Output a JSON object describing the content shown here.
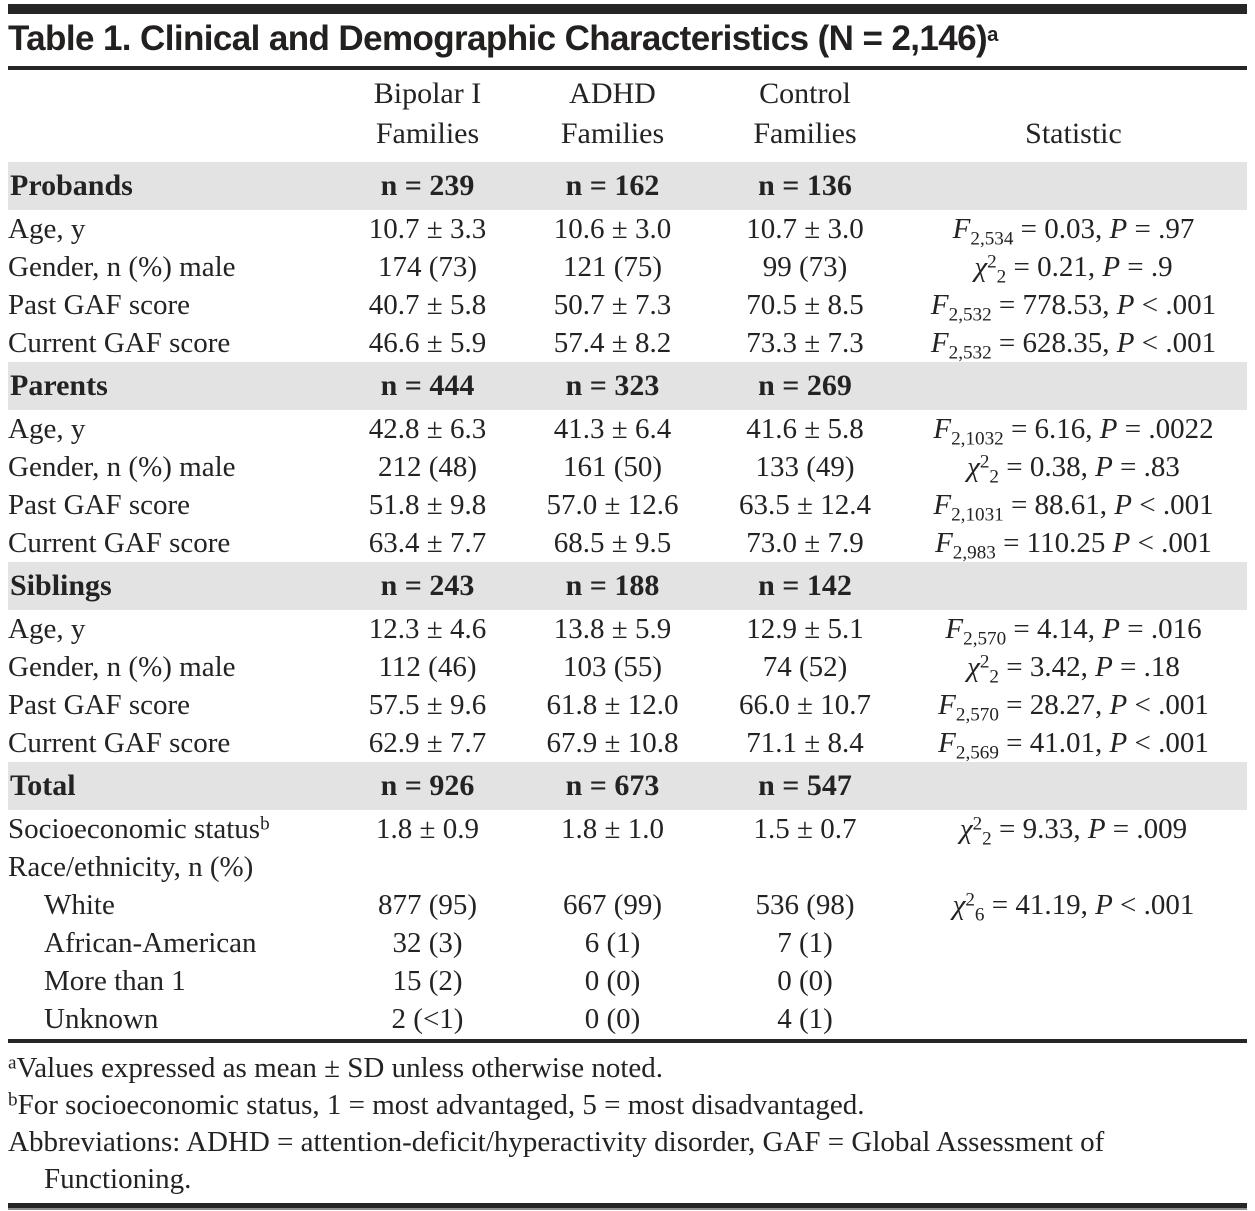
{
  "title": {
    "text": "Table 1. Clinical and Demographic Characteristics (N = 2,146)",
    "sup": "a"
  },
  "colors": {
    "ink": "#232323",
    "band_gray": "#e3e3e3",
    "rule_black": "#262626"
  },
  "table": {
    "columns": [
      {
        "line1": "",
        "line2": ""
      },
      {
        "line1": "Bipolar I",
        "line2": "Families"
      },
      {
        "line1": "ADHD",
        "line2": "Families"
      },
      {
        "line1": "Control",
        "line2": "Families"
      },
      {
        "line1": "",
        "line2": "Statistic"
      }
    ],
    "sections": [
      {
        "name": "Probands",
        "counts": [
          "n = 239",
          "n = 162",
          "n = 136"
        ],
        "rows": [
          {
            "label": "Age, y",
            "cells": [
              "10.7 ± 3.3",
              "10.6 ± 3.0",
              "10.7 ± 3.0"
            ],
            "stat": [
              [
                "i",
                "F"
              ],
              [
                "sub",
                "2,534"
              ],
              [
                "p",
                " = 0.03, "
              ],
              [
                "i",
                "P"
              ],
              [
                "p",
                " = .97"
              ]
            ]
          },
          {
            "label": "Gender, n (%) male",
            "cells": [
              "174 (73)",
              "121 (75)",
              "99 (73)"
            ],
            "stat": [
              [
                "i",
                "χ"
              ],
              [
                "sup",
                "2"
              ],
              [
                "sub",
                "2"
              ],
              [
                "p",
                " = 0.21, "
              ],
              [
                "i",
                "P"
              ],
              [
                "p",
                " = .9"
              ]
            ]
          },
          {
            "label": "Past GAF score",
            "cells": [
              "40.7 ± 5.8",
              "50.7 ± 7.3",
              "70.5 ± 8.5"
            ],
            "stat": [
              [
                "i",
                "F"
              ],
              [
                "sub",
                "2,532"
              ],
              [
                "p",
                " = 778.53, "
              ],
              [
                "i",
                "P"
              ],
              [
                "p",
                " < .001"
              ]
            ]
          },
          {
            "label": "Current GAF score",
            "cells": [
              "46.6 ± 5.9",
              "57.4 ± 8.2",
              "73.3 ± 7.3"
            ],
            "stat": [
              [
                "i",
                "F"
              ],
              [
                "sub",
                "2,532"
              ],
              [
                "p",
                " = 628.35, "
              ],
              [
                "i",
                "P"
              ],
              [
                "p",
                " < .001"
              ]
            ]
          }
        ]
      },
      {
        "name": "Parents",
        "counts": [
          "n = 444",
          "n = 323",
          "n = 269"
        ],
        "rows": [
          {
            "label": "Age, y",
            "cells": [
              "42.8 ± 6.3",
              "41.3 ± 6.4",
              "41.6 ± 5.8"
            ],
            "stat": [
              [
                "i",
                "F"
              ],
              [
                "sub",
                "2,1032"
              ],
              [
                "p",
                " = 6.16, "
              ],
              [
                "i",
                "P"
              ],
              [
                "p",
                " = .0022"
              ]
            ]
          },
          {
            "label": "Gender, n (%) male",
            "cells": [
              "212 (48)",
              "161 (50)",
              "133 (49)"
            ],
            "stat": [
              [
                "i",
                "χ"
              ],
              [
                "sup",
                "2"
              ],
              [
                "sub",
                "2"
              ],
              [
                "p",
                " = 0.38, "
              ],
              [
                "i",
                "P"
              ],
              [
                "p",
                " = .83"
              ]
            ]
          },
          {
            "label": "Past GAF score",
            "cells": [
              "51.8 ± 9.8",
              "57.0 ± 12.6",
              "63.5 ± 12.4"
            ],
            "stat": [
              [
                "i",
                "F"
              ],
              [
                "sub",
                "2,1031"
              ],
              [
                "p",
                " = 88.61, "
              ],
              [
                "i",
                "P"
              ],
              [
                "p",
                " < .001"
              ]
            ]
          },
          {
            "label": "Current GAF score",
            "cells": [
              "63.4 ± 7.7",
              "68.5 ± 9.5",
              "73.0 ± 7.9"
            ],
            "stat": [
              [
                "i",
                "F"
              ],
              [
                "sub",
                "2,983"
              ],
              [
                "p",
                " = 110.25 "
              ],
              [
                "i",
                "P"
              ],
              [
                "p",
                " < .001"
              ]
            ]
          }
        ]
      },
      {
        "name": "Siblings",
        "counts": [
          "n = 243",
          "n = 188",
          "n = 142"
        ],
        "rows": [
          {
            "label": "Age, y",
            "cells": [
              "12.3 ± 4.6",
              "13.8 ± 5.9",
              "12.9 ± 5.1"
            ],
            "stat": [
              [
                "i",
                "F"
              ],
              [
                "sub",
                "2,570"
              ],
              [
                "p",
                " = 4.14, "
              ],
              [
                "i",
                "P"
              ],
              [
                "p",
                " = .016"
              ]
            ]
          },
          {
            "label": "Gender, n (%) male",
            "cells": [
              "112 (46)",
              "103 (55)",
              "74 (52)"
            ],
            "stat": [
              [
                "i",
                "χ"
              ],
              [
                "sup",
                "2"
              ],
              [
                "sub",
                "2"
              ],
              [
                "p",
                " = 3.42, "
              ],
              [
                "i",
                "P"
              ],
              [
                "p",
                " = .18"
              ]
            ]
          },
          {
            "label": "Past GAF score",
            "cells": [
              "57.5 ± 9.6",
              "61.8 ± 12.0",
              "66.0 ± 10.7"
            ],
            "stat": [
              [
                "i",
                "F"
              ],
              [
                "sub",
                "2,570"
              ],
              [
                "p",
                " = 28.27, "
              ],
              [
                "i",
                "P"
              ],
              [
                "p",
                " < .001"
              ]
            ]
          },
          {
            "label": "Current GAF score",
            "cells": [
              "62.9 ± 7.7",
              "67.9 ± 10.8",
              "71.1 ± 8.4"
            ],
            "stat": [
              [
                "i",
                "F"
              ],
              [
                "sub",
                "2,569"
              ],
              [
                "p",
                " = 41.01, "
              ],
              [
                "i",
                "P"
              ],
              [
                "p",
                " < .001"
              ]
            ]
          }
        ]
      },
      {
        "name": "Total",
        "counts": [
          "n = 926",
          "n = 673",
          "n = 547"
        ],
        "rows": [
          {
            "label": "Socioeconomic status",
            "label_sup": "b",
            "cells": [
              "1.8 ± 0.9",
              "1.8 ± 1.0",
              "1.5 ± 0.7"
            ],
            "stat": [
              [
                "i",
                "χ"
              ],
              [
                "sup",
                "2"
              ],
              [
                "sub",
                "2"
              ],
              [
                "p",
                " = 9.33, "
              ],
              [
                "i",
                "P"
              ],
              [
                "p",
                " = .009"
              ]
            ]
          },
          {
            "label": "Race/ethnicity, n (%)",
            "cells": [
              "",
              "",
              ""
            ],
            "stat": []
          },
          {
            "label": "White",
            "indent": true,
            "cells": [
              "877 (95)",
              "667 (99)",
              "536 (98)"
            ],
            "stat": [
              [
                "i",
                "χ"
              ],
              [
                "sup",
                "2"
              ],
              [
                "sub",
                "6"
              ],
              [
                "p",
                " = 41.19, "
              ],
              [
                "i",
                "P"
              ],
              [
                "p",
                " < .001"
              ]
            ]
          },
          {
            "label": "African-American",
            "indent": true,
            "cells": [
              "32 (3)",
              "6 (1)",
              "7 (1)"
            ],
            "stat": []
          },
          {
            "label": "More than 1",
            "indent": true,
            "cells": [
              "15 (2)",
              "0 (0)",
              "0 (0)"
            ],
            "stat": []
          },
          {
            "label": "Unknown",
            "indent": true,
            "cells": [
              "2 (<1)",
              "0 (0)",
              "4 (1)"
            ],
            "stat": []
          }
        ]
      }
    ]
  },
  "footnotes": [
    {
      "sup": "a",
      "text": "Values expressed as mean ± SD unless otherwise noted."
    },
    {
      "sup": "b",
      "text": "For socioeconomic status, 1 = most advantaged, 5 = most disadvantaged."
    },
    {
      "sup": "",
      "text": "Abbreviations: ADHD = attention-deficit/hyperactivity disorder, GAF = Global Assessment of Functioning."
    }
  ]
}
